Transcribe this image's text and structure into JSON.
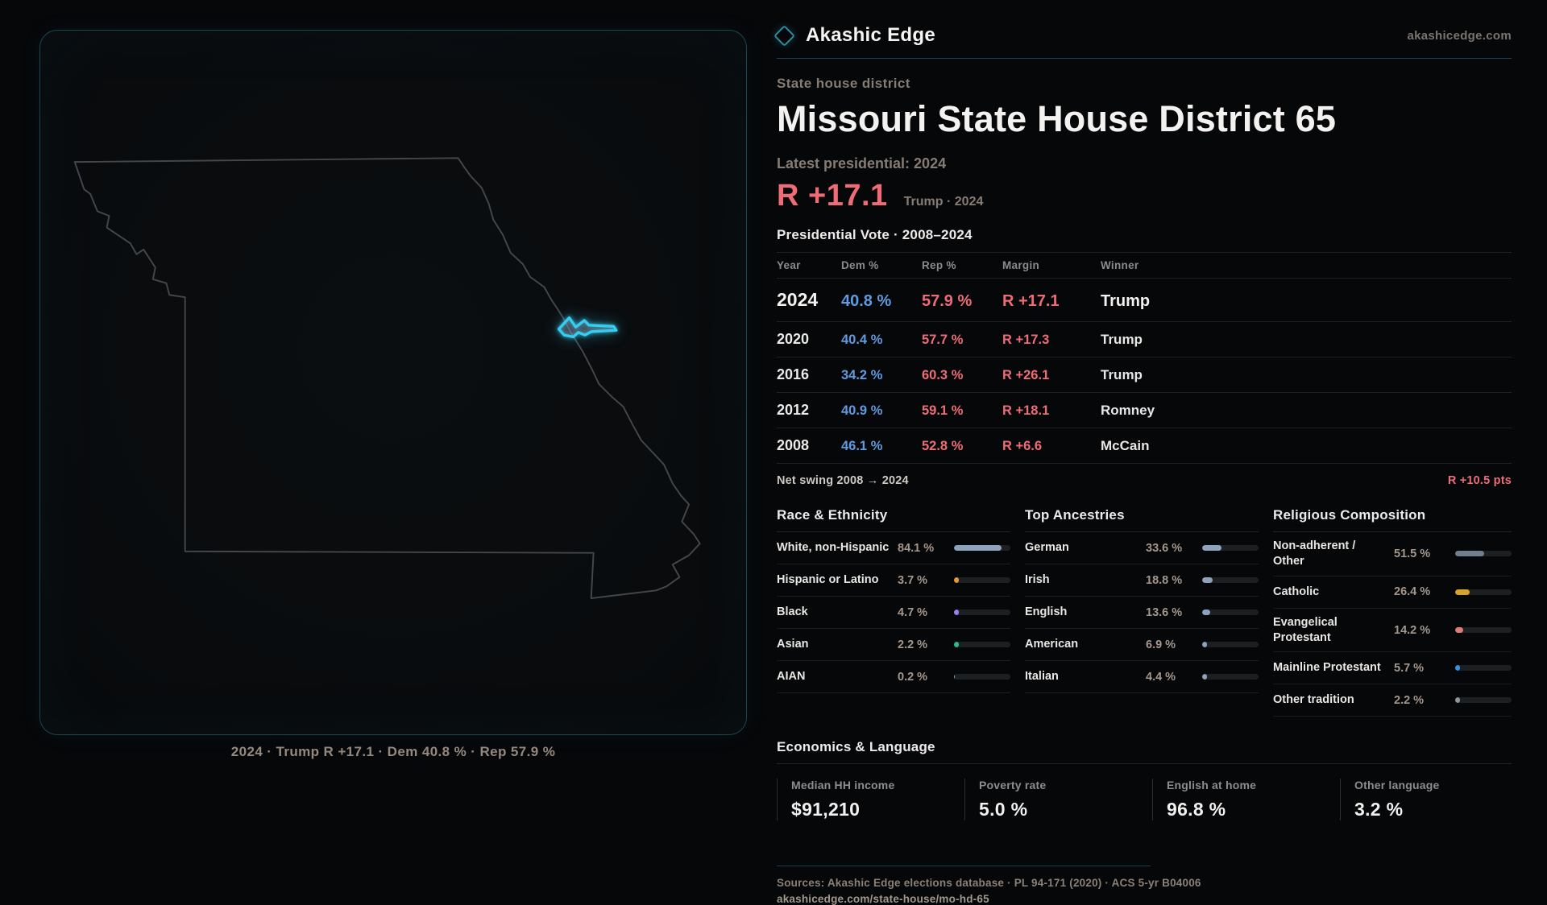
{
  "brand": {
    "name": "Akashic Edge",
    "domain": "akashicedge.com"
  },
  "page": {
    "kicker": "State house district",
    "title": "Missouri State House District 65",
    "latest_label": "Latest presidential: 2024",
    "headline_margin": "R +17.1",
    "headline_context": "Trump · 2024"
  },
  "map": {
    "caption": "2024 · Trump R +17.1 · Dem 40.8 % · Rep 57.9 %",
    "highlight_color": "#35cdf0"
  },
  "vote_table": {
    "title": "Presidential Vote · 2008–2024",
    "columns": {
      "year": "Year",
      "dem": "Dem %",
      "rep": "Rep %",
      "margin": "Margin",
      "winner": "Winner"
    },
    "rows": [
      {
        "year": "2024",
        "dem": "40.8 %",
        "rep": "57.9 %",
        "margin": "R +17.1",
        "winner": "Trump"
      },
      {
        "year": "2020",
        "dem": "40.4 %",
        "rep": "57.7 %",
        "margin": "R +17.3",
        "winner": "Trump"
      },
      {
        "year": "2016",
        "dem": "34.2 %",
        "rep": "60.3 %",
        "margin": "R +26.1",
        "winner": "Trump"
      },
      {
        "year": "2012",
        "dem": "40.9 %",
        "rep": "59.1 %",
        "margin": "R +18.1",
        "winner": "Romney"
      },
      {
        "year": "2008",
        "dem": "46.1 %",
        "rep": "52.8 %",
        "margin": "R +6.6",
        "winner": "McCain"
      }
    ],
    "net_swing_label": "Net swing 2008 → 2024",
    "net_swing_value": "R +10.5 pts"
  },
  "demographics": [
    {
      "title": "Race & Ethnicity",
      "rows": [
        {
          "label": "White, non-Hispanic",
          "value": "84.1 %",
          "pct": 84.1,
          "color": "#8ea2bc"
        },
        {
          "label": "Hispanic or Latino",
          "value": "3.7 %",
          "pct": 3.7,
          "color": "#e8992e"
        },
        {
          "label": "Black",
          "value": "4.7 %",
          "pct": 4.7,
          "color": "#9b7ef2"
        },
        {
          "label": "Asian",
          "value": "2.2 %",
          "pct": 2.2,
          "color": "#2dbd8d"
        },
        {
          "label": "AIAN",
          "value": "0.2 %",
          "pct": 0.2,
          "color": "#8ea2bc"
        }
      ]
    },
    {
      "title": "Top Ancestries",
      "rows": [
        {
          "label": "German",
          "value": "33.6 %",
          "pct": 33.6,
          "color": "#8ea2bc"
        },
        {
          "label": "Irish",
          "value": "18.8 %",
          "pct": 18.8,
          "color": "#8ea2bc"
        },
        {
          "label": "English",
          "value": "13.6 %",
          "pct": 13.6,
          "color": "#8ea2bc"
        },
        {
          "label": "American",
          "value": "6.9 %",
          "pct": 6.9,
          "color": "#8ea2bc"
        },
        {
          "label": "Italian",
          "value": "4.4 %",
          "pct": 4.4,
          "color": "#8ea2bc"
        }
      ]
    },
    {
      "title": "Religious Composition",
      "rows": [
        {
          "label": "Non-adherent / Other",
          "value": "51.5 %",
          "pct": 51.5,
          "color": "#717e90"
        },
        {
          "label": "Catholic",
          "value": "26.4 %",
          "pct": 26.4,
          "color": "#d7a32b"
        },
        {
          "label": "Evangelical Protestant",
          "value": "14.2 %",
          "pct": 14.2,
          "color": "#e27a79"
        },
        {
          "label": "Mainline Protestant",
          "value": "5.7 %",
          "pct": 5.7,
          "color": "#3d8edd"
        },
        {
          "label": "Other tradition",
          "value": "2.2 %",
          "pct": 2.2,
          "color": "#8f959c"
        }
      ]
    }
  ],
  "economics": {
    "title": "Economics & Language",
    "stats": [
      {
        "label": "Median HH income",
        "value": "$91,210"
      },
      {
        "label": "Poverty rate",
        "value": "5.0 %"
      },
      {
        "label": "English at home",
        "value": "96.8 %"
      },
      {
        "label": "Other language",
        "value": "3.2 %"
      }
    ]
  },
  "footer": {
    "sources": "Sources: Akashic Edge elections database · PL 94-171 (2020) · ACS 5-yr B04006",
    "permalink": "akashicedge.com/state-house/mo-hd-65"
  }
}
